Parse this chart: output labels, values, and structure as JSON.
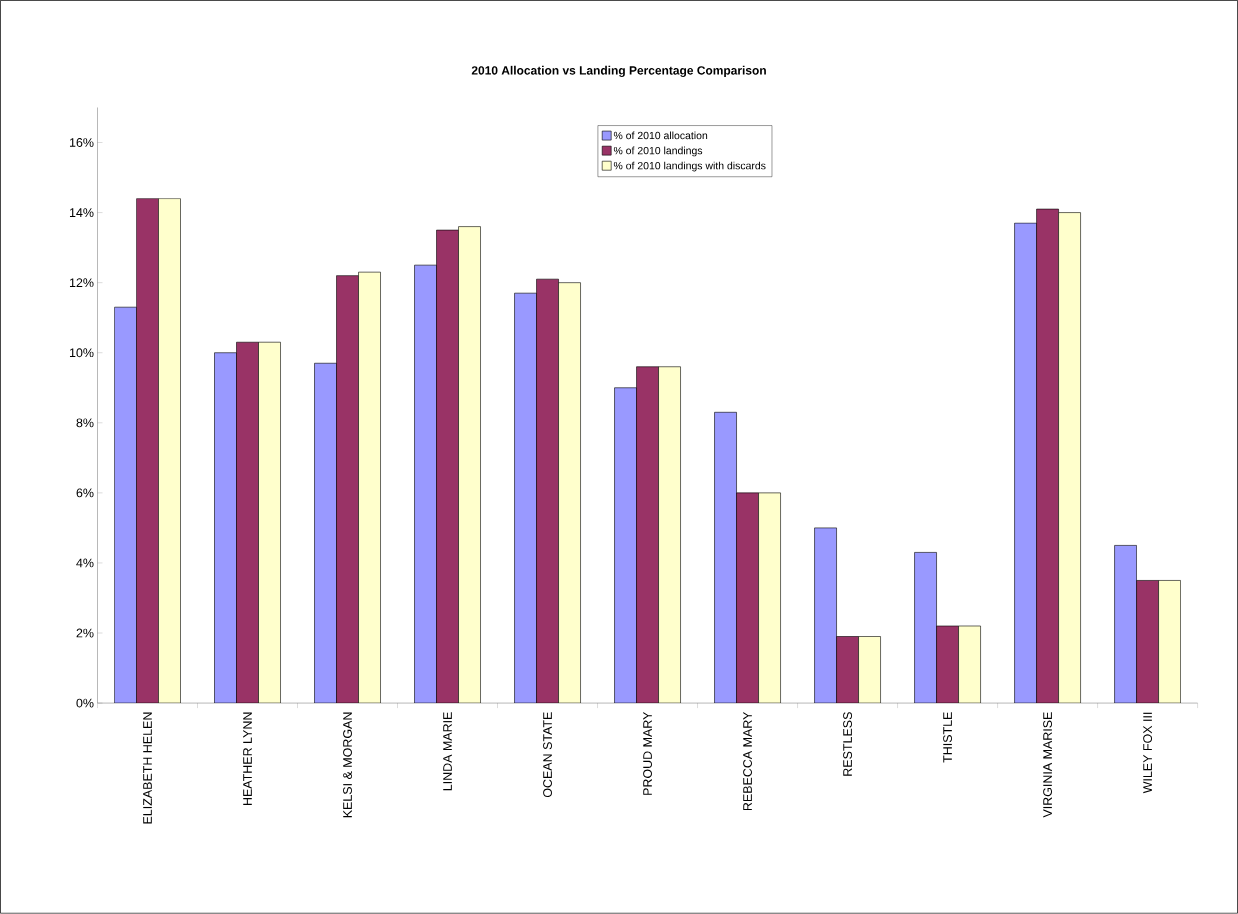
{
  "chart_data": {
    "type": "bar",
    "title": "2010 Allocation vs Landing Percentage Comparison",
    "categories": [
      "ELIZABETH HELEN",
      "HEATHER LYNN",
      "KELSI & MORGAN",
      "LINDA MARIE",
      "OCEAN STATE",
      "PROUD MARY",
      "REBECCA MARY",
      "RESTLESS",
      "THISTLE",
      "VIRGINIA MARISE",
      "WILEY FOX III"
    ],
    "series": [
      {
        "name": "% of 2010 allocation",
        "color": "#9999ff",
        "values": [
          11.3,
          10.0,
          9.7,
          12.5,
          11.7,
          9.0,
          8.3,
          5.0,
          4.3,
          13.7,
          4.5
        ]
      },
      {
        "name": "%  of 2010 landings",
        "color": "#993366",
        "values": [
          14.4,
          10.3,
          12.2,
          13.5,
          12.1,
          9.6,
          6.0,
          1.9,
          2.2,
          14.1,
          3.5
        ]
      },
      {
        "name": "% of 2010 landings with discards",
        "color": "#ffffcc",
        "values": [
          14.4,
          10.3,
          12.3,
          13.6,
          12.0,
          9.6,
          6.0,
          1.9,
          2.2,
          14.0,
          3.5
        ]
      }
    ],
    "ylim": [
      0,
      17
    ],
    "yticks": [
      {
        "value": 0,
        "label": "0%"
      },
      {
        "value": 2,
        "label": "2%"
      },
      {
        "value": 4,
        "label": "4%"
      },
      {
        "value": 6,
        "label": "6%"
      },
      {
        "value": 8,
        "label": "8%"
      },
      {
        "value": 10,
        "label": "10%"
      },
      {
        "value": 12,
        "label": "12%"
      },
      {
        "value": 14,
        "label": "14%"
      },
      {
        "value": 16,
        "label": "16%"
      }
    ],
    "grid": false,
    "legend": "top"
  }
}
